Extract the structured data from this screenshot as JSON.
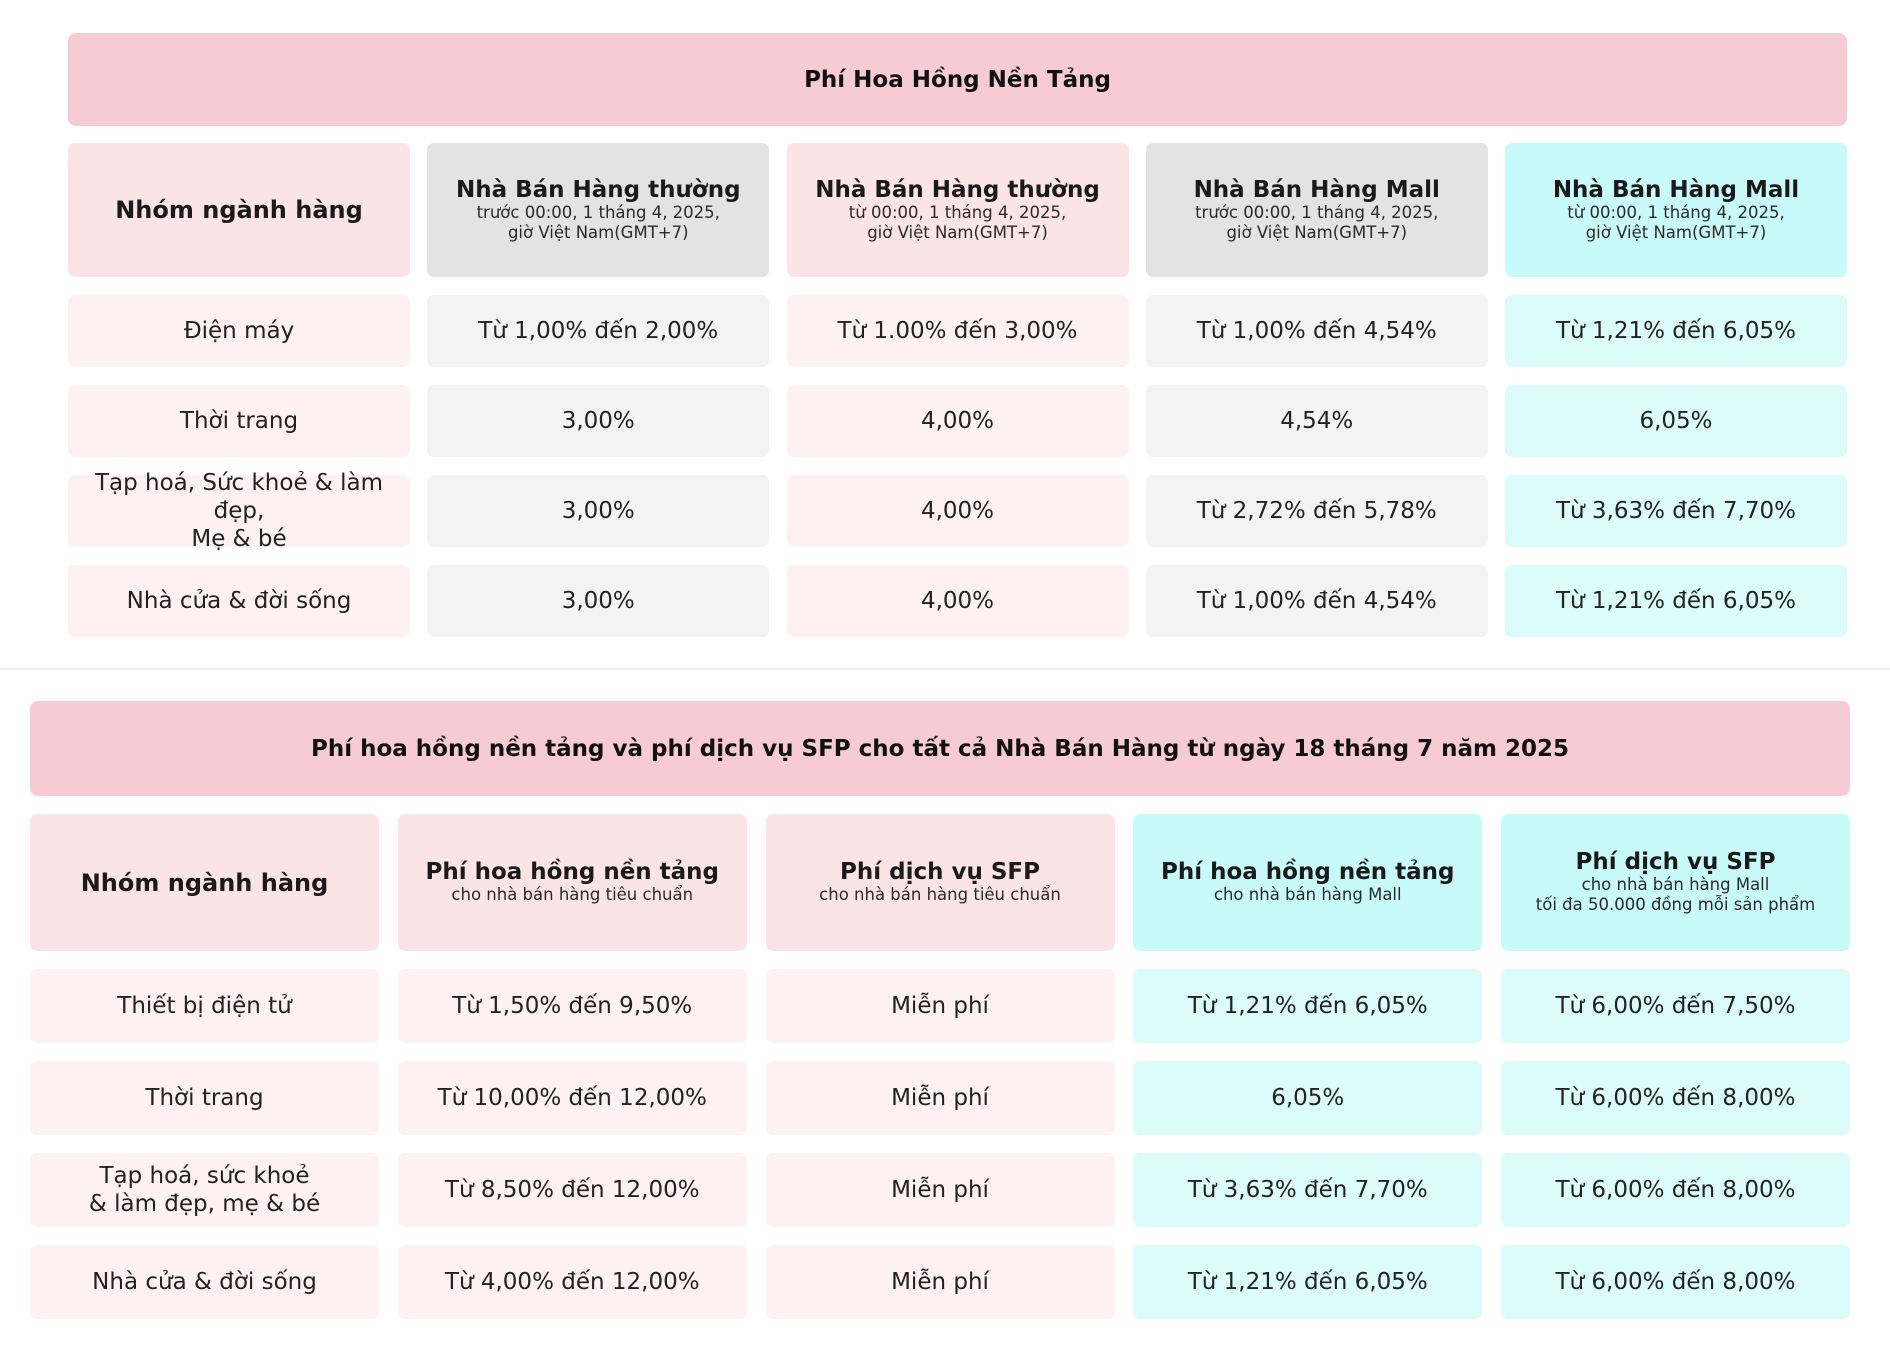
{
  "table1": {
    "banner": "Phí Hoa Hồng Nền Tảng",
    "category_header": "Nhóm ngành hàng",
    "columns": [
      {
        "title": "Nhà Bán Hàng thường",
        "sub1": "trước 00:00, 1 tháng 4, 2025,",
        "sub2": "giờ Việt Nam(GMT+7)"
      },
      {
        "title": "Nhà Bán Hàng thường",
        "sub1": "từ 00:00, 1 tháng 4, 2025,",
        "sub2": "giờ Việt Nam(GMT+7)"
      },
      {
        "title": "Nhà Bán Hàng Mall",
        "sub1": "trước 00:00, 1 tháng 4, 2025,",
        "sub2": "giờ Việt Nam(GMT+7)"
      },
      {
        "title": "Nhà Bán Hàng Mall",
        "sub1": "từ 00:00, 1 tháng 4, 2025,",
        "sub2": "giờ Việt Nam(GMT+7)"
      }
    ],
    "rows": [
      {
        "category": [
          "Điện máy"
        ],
        "values": [
          "Từ 1,00% đến 2,00%",
          "Từ 1.00% đến 3,00%",
          "Từ 1,00% đến 4,54%",
          "Từ 1,21% đến 6,05%"
        ]
      },
      {
        "category": [
          "Thời trang"
        ],
        "values": [
          "3,00%",
          "4,00%",
          "4,54%",
          "6,05%"
        ]
      },
      {
        "category": [
          "Tạp hoá, Sức khoẻ & làm đẹp,",
          "Mẹ & bé"
        ],
        "values": [
          "3,00%",
          "4,00%",
          "Từ 2,72% đến 5,78%",
          "Từ 3,63% đến 7,70%"
        ]
      },
      {
        "category": [
          "Nhà cửa & đời sống"
        ],
        "values": [
          "3,00%",
          "4,00%",
          "Từ 1,00% đến 4,54%",
          "Từ 1,21% đến 6,05%"
        ]
      }
    ]
  },
  "table2": {
    "banner": "Phí hoa hồng nền tảng và phí dịch vụ SFP cho tất cả Nhà Bán Hàng từ ngày 18 tháng 7 năm 2025",
    "category_header": "Nhóm ngành hàng",
    "columns": [
      {
        "title": "Phí hoa hồng nền tảng",
        "sub1": "cho nhà bán hàng tiêu chuẩn",
        "sub2": ""
      },
      {
        "title": "Phí dịch vụ SFP",
        "sub1": "cho nhà bán hàng tiêu chuẩn",
        "sub2": ""
      },
      {
        "title": "Phí hoa hồng nền tảng",
        "sub1": "cho nhà bán hàng Mall",
        "sub2": ""
      },
      {
        "title": "Phí dịch vụ SFP",
        "sub1": "cho nhà bán hàng Mall",
        "sub2": "tối đa 50.000 đồng mỗi sản phẩm"
      }
    ],
    "rows": [
      {
        "category": [
          "Thiết bị điện tử"
        ],
        "values": [
          "Từ 1,50% đến 9,50%",
          "Miễn phí",
          "Từ 1,21% đến 6,05%",
          "Từ 6,00% đến 7,50%"
        ]
      },
      {
        "category": [
          "Thời trang"
        ],
        "values": [
          "Từ 10,00% đến 12,00%",
          "Miễn phí",
          "6,05%",
          "Từ 6,00% đến 8,00%"
        ]
      },
      {
        "category": [
          "Tạp hoá, sức khoẻ",
          "& làm đẹp, mẹ & bé"
        ],
        "values": [
          "Từ 8,50% đến 12,00%",
          "Miễn phí",
          "Từ 3,63% đến 7,70%",
          "Từ 6,00% đến 8,00%"
        ]
      },
      {
        "category": [
          "Nhà cửa & đời sống"
        ],
        "values": [
          "Từ 4,00% đến 12,00%",
          "Miễn phí",
          "Từ 1,21% đến 6,05%",
          "Từ 6,00% đến 8,00%"
        ]
      }
    ]
  },
  "colors": {
    "banner": "#f7cbd5",
    "pink_header": "#fbe4e8",
    "pink_cell": "#fdf1f3",
    "gray_header": "#e3e3e3",
    "gray_cell": "#f3f3f3",
    "cyan_header": "#c9fafa",
    "cyan_cell": "#dcfbfb"
  }
}
